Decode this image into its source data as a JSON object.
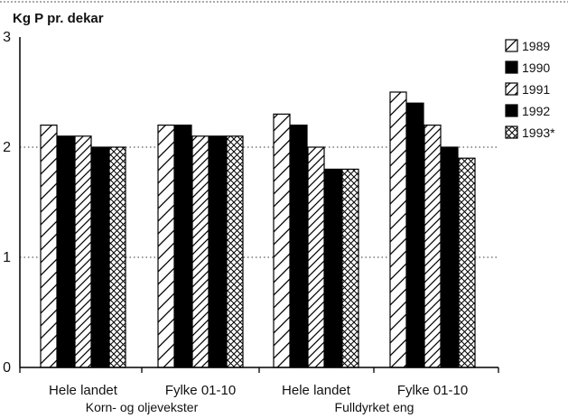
{
  "chart_data": {
    "type": "bar",
    "ylabel": "Kg P pr. dekar",
    "ylim": [
      0,
      3
    ],
    "yticks": [
      "0",
      "1",
      "2",
      "3"
    ],
    "categories": [
      "Hele landet",
      "Fylke 01-10",
      "Hele landet",
      "Fylke 01-10"
    ],
    "groups": [
      {
        "label": "Korn- og oljevekster",
        "span": [
          0,
          1
        ]
      },
      {
        "label": "Fulldyrket  eng",
        "span": [
          2,
          3
        ]
      }
    ],
    "series": [
      {
        "name": "1989",
        "values": [
          2.2,
          2.2,
          2.3,
          2.5
        ]
      },
      {
        "name": "1990",
        "values": [
          2.1,
          2.2,
          2.2,
          2.4
        ]
      },
      {
        "name": "1991",
        "values": [
          2.1,
          2.1,
          2.0,
          2.2
        ]
      },
      {
        "name": "1992",
        "values": [
          2.0,
          2.1,
          1.8,
          2.0
        ]
      },
      {
        "name": "1993*",
        "values": [
          2.0,
          2.1,
          1.8,
          1.9
        ]
      }
    ],
    "legend_position": "right",
    "grid": "dotted horizontal"
  },
  "series_patterns": [
    "hatch-light",
    "solid",
    "hatch",
    "solid",
    "crosshatch"
  ]
}
